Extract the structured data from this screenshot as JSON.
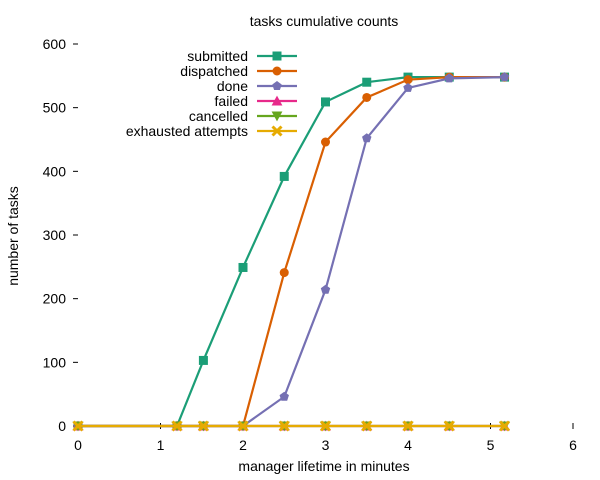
{
  "chart_data": {
    "type": "line",
    "title": "tasks cumulative counts",
    "xlabel": "manager lifetime in minutes",
    "ylabel": "number of tasks",
    "xlim": [
      0,
      6
    ],
    "ylim": [
      0,
      600
    ],
    "xticks": [
      "0",
      "1",
      "2",
      "3",
      "4",
      "5",
      "6"
    ],
    "yticks": [
      "0",
      "100",
      "200",
      "300",
      "400",
      "500",
      "600"
    ],
    "grid": false,
    "legend_position": "top-center",
    "x": [
      0,
      1.2,
      1.52,
      2.0,
      2.5,
      3.0,
      3.5,
      4.0,
      4.5,
      5.17
    ],
    "series": [
      {
        "name": "submitted",
        "color": "#1b9e77",
        "marker": "square",
        "values": [
          0,
          0,
          103,
          249,
          392,
          509,
          540,
          548,
          548,
          548
        ]
      },
      {
        "name": "dispatched",
        "color": "#d95f02",
        "marker": "circle",
        "values": [
          0,
          0,
          0,
          0,
          241,
          446,
          516,
          544,
          548,
          548
        ]
      },
      {
        "name": "done",
        "color": "#7570b3",
        "marker": "pentagon",
        "values": [
          0,
          0,
          0,
          0,
          46,
          214,
          452,
          531,
          546,
          548
        ]
      },
      {
        "name": "failed",
        "color": "#e7298a",
        "marker": "triangle-up",
        "values": [
          0,
          0,
          0,
          0,
          0,
          0,
          0,
          0,
          0,
          0
        ]
      },
      {
        "name": "cancelled",
        "color": "#66a61e",
        "marker": "triangle-down",
        "values": [
          0,
          0,
          0,
          0,
          0,
          0,
          0,
          0,
          0,
          0
        ]
      },
      {
        "name": "exhausted attempts",
        "color": "#e6ab02",
        "marker": "x",
        "values": [
          0,
          0,
          0,
          0,
          0,
          0,
          0,
          0,
          0,
          0
        ]
      }
    ]
  }
}
